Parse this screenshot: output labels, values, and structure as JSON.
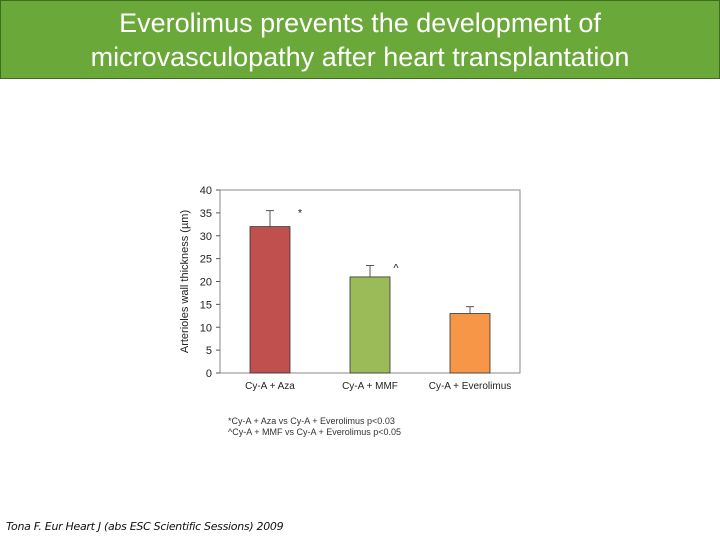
{
  "header": {
    "title_line1": "Everolimus prevents the development of",
    "title_line2": "microvasculopathy after heart transplantation"
  },
  "chart_data": {
    "type": "bar",
    "categories": [
      "Cy-A + Aza",
      "Cy-A + MMF",
      "Cy-A + Everolimus"
    ],
    "values": [
      32,
      21,
      13
    ],
    "errors": [
      3.5,
      2.5,
      1.5
    ],
    "bar_colors": [
      "#c0504d",
      "#9bbb59",
      "#f79646"
    ],
    "markers": [
      "*",
      "^",
      ""
    ],
    "ylabel": "Arterioles wall thickness (µm)",
    "xlabel": "",
    "ylim": [
      0,
      40
    ],
    "yticks": [
      0,
      5,
      10,
      15,
      20,
      25,
      30,
      35,
      40
    ],
    "grid": false,
    "footnotes": [
      "*Cy-A + Aza vs Cy-A + Everolimus p<0.03",
      "^Cy-A + MMF vs Cy-A + Everolimus p<0.05"
    ]
  },
  "citation": "Tona F.  Eur Heart J (abs ESC Scientific Sessions) 2009"
}
